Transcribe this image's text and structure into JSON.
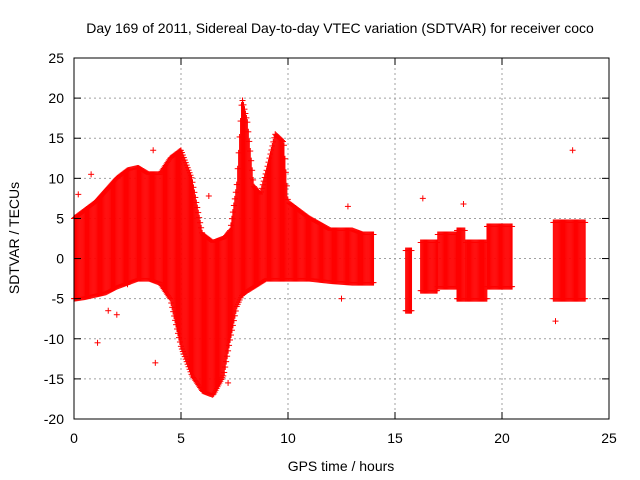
{
  "chart_data": {
    "type": "scatter",
    "title": "Day 169 of 2011, Sidereal Day-to-day VTEC variation (SDTVAR) for receiver coco",
    "xlabel": "GPS time / hours",
    "ylabel": "SDTVAR / TECUs",
    "xlim": [
      0,
      25
    ],
    "ylim": [
      -20,
      25
    ],
    "xticks": [
      "0",
      "5",
      "10",
      "15",
      "20",
      "25"
    ],
    "yticks": [
      "-20",
      "-15",
      "-10",
      "-5",
      "0",
      "5",
      "10",
      "15",
      "20",
      "25"
    ],
    "xtick_values": [
      0,
      5,
      10,
      15,
      20,
      25
    ],
    "ytick_values": [
      -20,
      -15,
      -10,
      -5,
      0,
      5,
      10,
      15,
      20,
      25
    ],
    "grid": true,
    "marker": "+",
    "series": [
      {
        "name": "SDTVAR",
        "color": "#ff0000",
        "envelope": [
          {
            "x": 0.0,
            "hi": 5.0,
            "lo": -5.0
          },
          {
            "x": 0.5,
            "hi": 6.0,
            "lo": -4.8
          },
          {
            "x": 1.0,
            "hi": 7.0,
            "lo": -4.5
          },
          {
            "x": 1.5,
            "hi": 8.5,
            "lo": -4.2
          },
          {
            "x": 2.0,
            "hi": 10.0,
            "lo": -3.5
          },
          {
            "x": 2.5,
            "hi": 11.0,
            "lo": -3.0
          },
          {
            "x": 3.0,
            "hi": 11.3,
            "lo": -2.5
          },
          {
            "x": 3.5,
            "hi": 10.5,
            "lo": -2.5
          },
          {
            "x": 4.0,
            "hi": 10.5,
            "lo": -3.0
          },
          {
            "x": 4.5,
            "hi": 12.5,
            "lo": -5.0
          },
          {
            "x": 5.0,
            "hi": 13.5,
            "lo": -11.0
          },
          {
            "x": 5.5,
            "hi": 10.0,
            "lo": -14.5
          },
          {
            "x": 6.0,
            "hi": 3.0,
            "lo": -16.5
          },
          {
            "x": 6.5,
            "hi": 2.0,
            "lo": -17.0
          },
          {
            "x": 7.0,
            "hi": 2.5,
            "lo": -14.5
          },
          {
            "x": 7.3,
            "hi": 3.5,
            "lo": -10.0
          },
          {
            "x": 7.6,
            "hi": 9.0,
            "lo": -6.0
          },
          {
            "x": 7.85,
            "hi": 20.0,
            "lo": -4.5
          },
          {
            "x": 8.1,
            "hi": 17.0,
            "lo": -4.0
          },
          {
            "x": 8.4,
            "hi": 9.0,
            "lo": -3.5
          },
          {
            "x": 8.7,
            "hi": 8.0,
            "lo": -3.0
          },
          {
            "x": 9.0,
            "hi": 11.0,
            "lo": -2.5
          },
          {
            "x": 9.4,
            "hi": 15.5,
            "lo": -2.5
          },
          {
            "x": 9.8,
            "hi": 14.5,
            "lo": -2.5
          },
          {
            "x": 10.0,
            "hi": 7.0,
            "lo": -2.5
          },
          {
            "x": 10.5,
            "hi": 6.0,
            "lo": -2.5
          },
          {
            "x": 11.0,
            "hi": 5.0,
            "lo": -2.5
          },
          {
            "x": 12.0,
            "hi": 3.5,
            "lo": -2.8
          },
          {
            "x": 13.0,
            "hi": 3.5,
            "lo": -3.0
          },
          {
            "x": 13.5,
            "hi": 3.0,
            "lo": -3.0
          },
          {
            "x": 14.0,
            "hi": 3.0,
            "lo": -3.0
          }
        ],
        "segments": [
          {
            "x0": 15.5,
            "x1": 15.8,
            "hi": 1.0,
            "lo": -6.5
          },
          {
            "x0": 16.2,
            "x1": 17.0,
            "hi": 2.0,
            "lo": -4.0
          },
          {
            "x0": 17.0,
            "x1": 17.9,
            "hi": 3.0,
            "lo": -3.5
          },
          {
            "x0": 17.9,
            "x1": 18.3,
            "hi": 3.5,
            "lo": -5.0
          },
          {
            "x0": 18.3,
            "x1": 19.3,
            "hi": 2.0,
            "lo": -5.0
          },
          {
            "x0": 19.3,
            "x1": 20.5,
            "hi": 4.0,
            "lo": -3.5
          },
          {
            "x0": 22.4,
            "x1": 23.9,
            "hi": 4.5,
            "lo": -5.0
          }
        ],
        "outliers": [
          {
            "x": 0.2,
            "y": 8.0
          },
          {
            "x": 0.8,
            "y": 10.5
          },
          {
            "x": 1.1,
            "y": -10.5
          },
          {
            "x": 1.6,
            "y": -6.5
          },
          {
            "x": 2.0,
            "y": -7.0
          },
          {
            "x": 2.5,
            "y": -3.2
          },
          {
            "x": 3.7,
            "y": 13.5
          },
          {
            "x": 3.8,
            "y": -13.0
          },
          {
            "x": 6.3,
            "y": 7.8
          },
          {
            "x": 7.2,
            "y": -15.5
          },
          {
            "x": 12.8,
            "y": 6.5
          },
          {
            "x": 12.5,
            "y": -5.0
          },
          {
            "x": 16.3,
            "y": 7.5
          },
          {
            "x": 18.2,
            "y": 6.8
          },
          {
            "x": 22.5,
            "y": -7.8
          },
          {
            "x": 23.3,
            "y": 13.5
          }
        ]
      }
    ]
  }
}
